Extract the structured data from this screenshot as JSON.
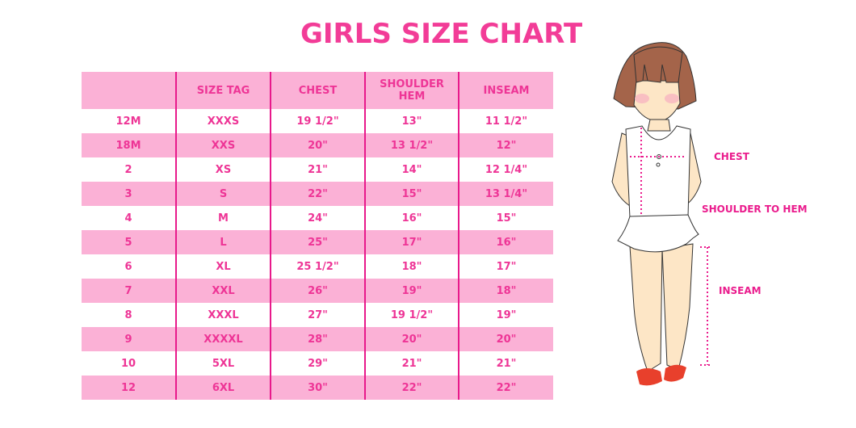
{
  "title": "GIRLS SIZE CHART",
  "table": {
    "headers": [
      "",
      "SIZE TAG",
      "CHEST",
      "SHOULDER HEM",
      "INSEAM"
    ],
    "rows": [
      [
        "12M",
        "XXXS",
        "19 1/2\"",
        "13\"",
        "11 1/2\""
      ],
      [
        "18M",
        "XXS",
        "20\"",
        "13 1/2\"",
        "12\""
      ],
      [
        "2",
        "XS",
        "21\"",
        "14\"",
        "12 1/4\""
      ],
      [
        "3",
        "S",
        "22\"",
        "15\"",
        "13 1/4\""
      ],
      [
        "4",
        "M",
        "24\"",
        "16\"",
        "15\""
      ],
      [
        "5",
        "L",
        "25\"",
        "17\"",
        "16\""
      ],
      [
        "6",
        "XL",
        "25 1/2\"",
        "18\"",
        "17\""
      ],
      [
        "7",
        "XXL",
        "26\"",
        "19\"",
        "18\""
      ],
      [
        "8",
        "XXXL",
        "27\"",
        "19 1/2\"",
        "19\""
      ],
      [
        "9",
        "XXXXL",
        "28\"",
        "20\"",
        "20\""
      ],
      [
        "10",
        "5XL",
        "29\"",
        "21\"",
        "21\""
      ],
      [
        "12",
        "6XL",
        "30\"",
        "22\"",
        "22\""
      ]
    ]
  },
  "figure": {
    "labels": {
      "chest": "CHEST",
      "shoulder_to_hem": "SHOULDER TO HEM",
      "inseam": "INSEAM"
    }
  },
  "colors": {
    "accent": "#f23c97",
    "row_pink": "#fbb1d6",
    "divider": "#e8198b"
  }
}
